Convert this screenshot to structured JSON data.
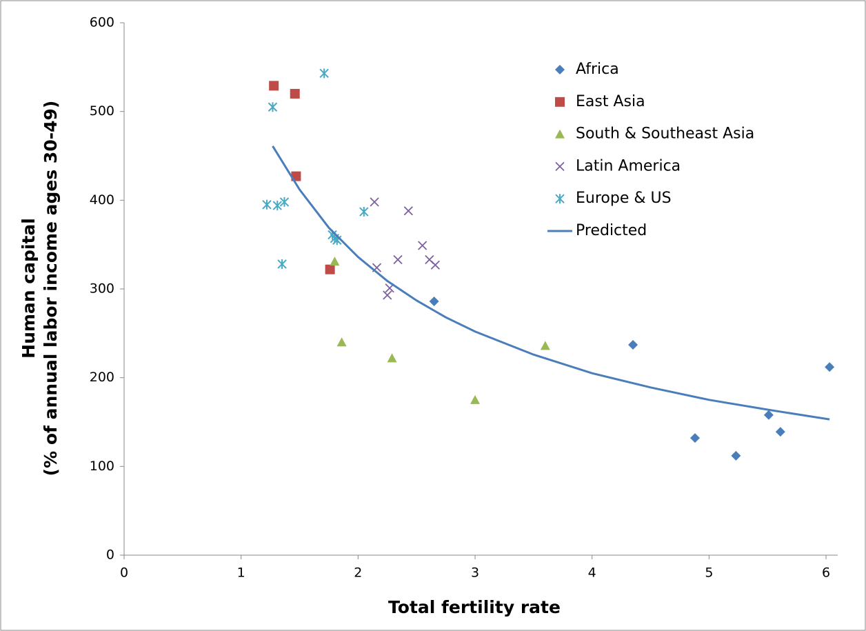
{
  "chart_data": {
    "type": "scatter",
    "xlabel": "Total fertility rate",
    "ylabel": [
      "Human capital",
      "(% of annual labor income ages 30-49)"
    ],
    "xlim": [
      0,
      6.1
    ],
    "xticks": [
      0,
      1,
      2,
      3,
      4,
      5,
      6
    ],
    "ylim": [
      0,
      600
    ],
    "yticks": [
      0,
      100,
      200,
      300,
      400,
      500,
      600
    ],
    "grid": false,
    "legend": "upper right",
    "series": [
      {
        "name": "Africa",
        "color": "#4a7ebb",
        "marker": "diamond",
        "x": [
          2.65,
          4.35,
          6.03,
          4.88,
          5.23,
          5.51,
          5.61
        ],
        "values": [
          286,
          237,
          212,
          132,
          112,
          158,
          139
        ]
      },
      {
        "name": "East Asia",
        "color": "#be4b48",
        "marker": "square",
        "x": [
          1.28,
          1.46,
          1.47,
          1.76
        ],
        "values": [
          529,
          520,
          427,
          322
        ]
      },
      {
        "name": "South & Southeast Asia",
        "color": "#98b954",
        "marker": "triangle",
        "x": [
          1.8,
          1.86,
          2.29,
          3.0,
          3.6
        ],
        "values": [
          331,
          240,
          222,
          175,
          236
        ]
      },
      {
        "name": "Latin America",
        "color": "#7d60a0",
        "marker": "x",
        "x": [
          2.14,
          2.16,
          2.25,
          2.27,
          2.34,
          2.43,
          2.55,
          2.61,
          2.66
        ],
        "values": [
          398,
          324,
          293,
          301,
          333,
          388,
          349,
          333,
          327
        ]
      },
      {
        "name": "Europe & US",
        "color": "#46aac5",
        "marker": "asterisk",
        "x": [
          1.71,
          1.27,
          1.22,
          1.31,
          1.37,
          1.35,
          1.78,
          1.8,
          1.82,
          2.05
        ],
        "values": [
          543,
          505,
          395,
          394,
          398,
          328,
          361,
          357,
          355,
          387
        ]
      },
      {
        "name": "Predicted",
        "color": "#4a7ebb",
        "marker": "line",
        "x": [
          1.27,
          1.5,
          1.75,
          2,
          2.25,
          2.5,
          2.75,
          3,
          3.5,
          4,
          4.5,
          5,
          5.5,
          6.03
        ],
        "values": [
          461,
          412,
          369,
          336,
          309,
          287,
          268,
          252,
          226,
          205,
          189,
          175,
          164,
          153
        ]
      }
    ]
  }
}
